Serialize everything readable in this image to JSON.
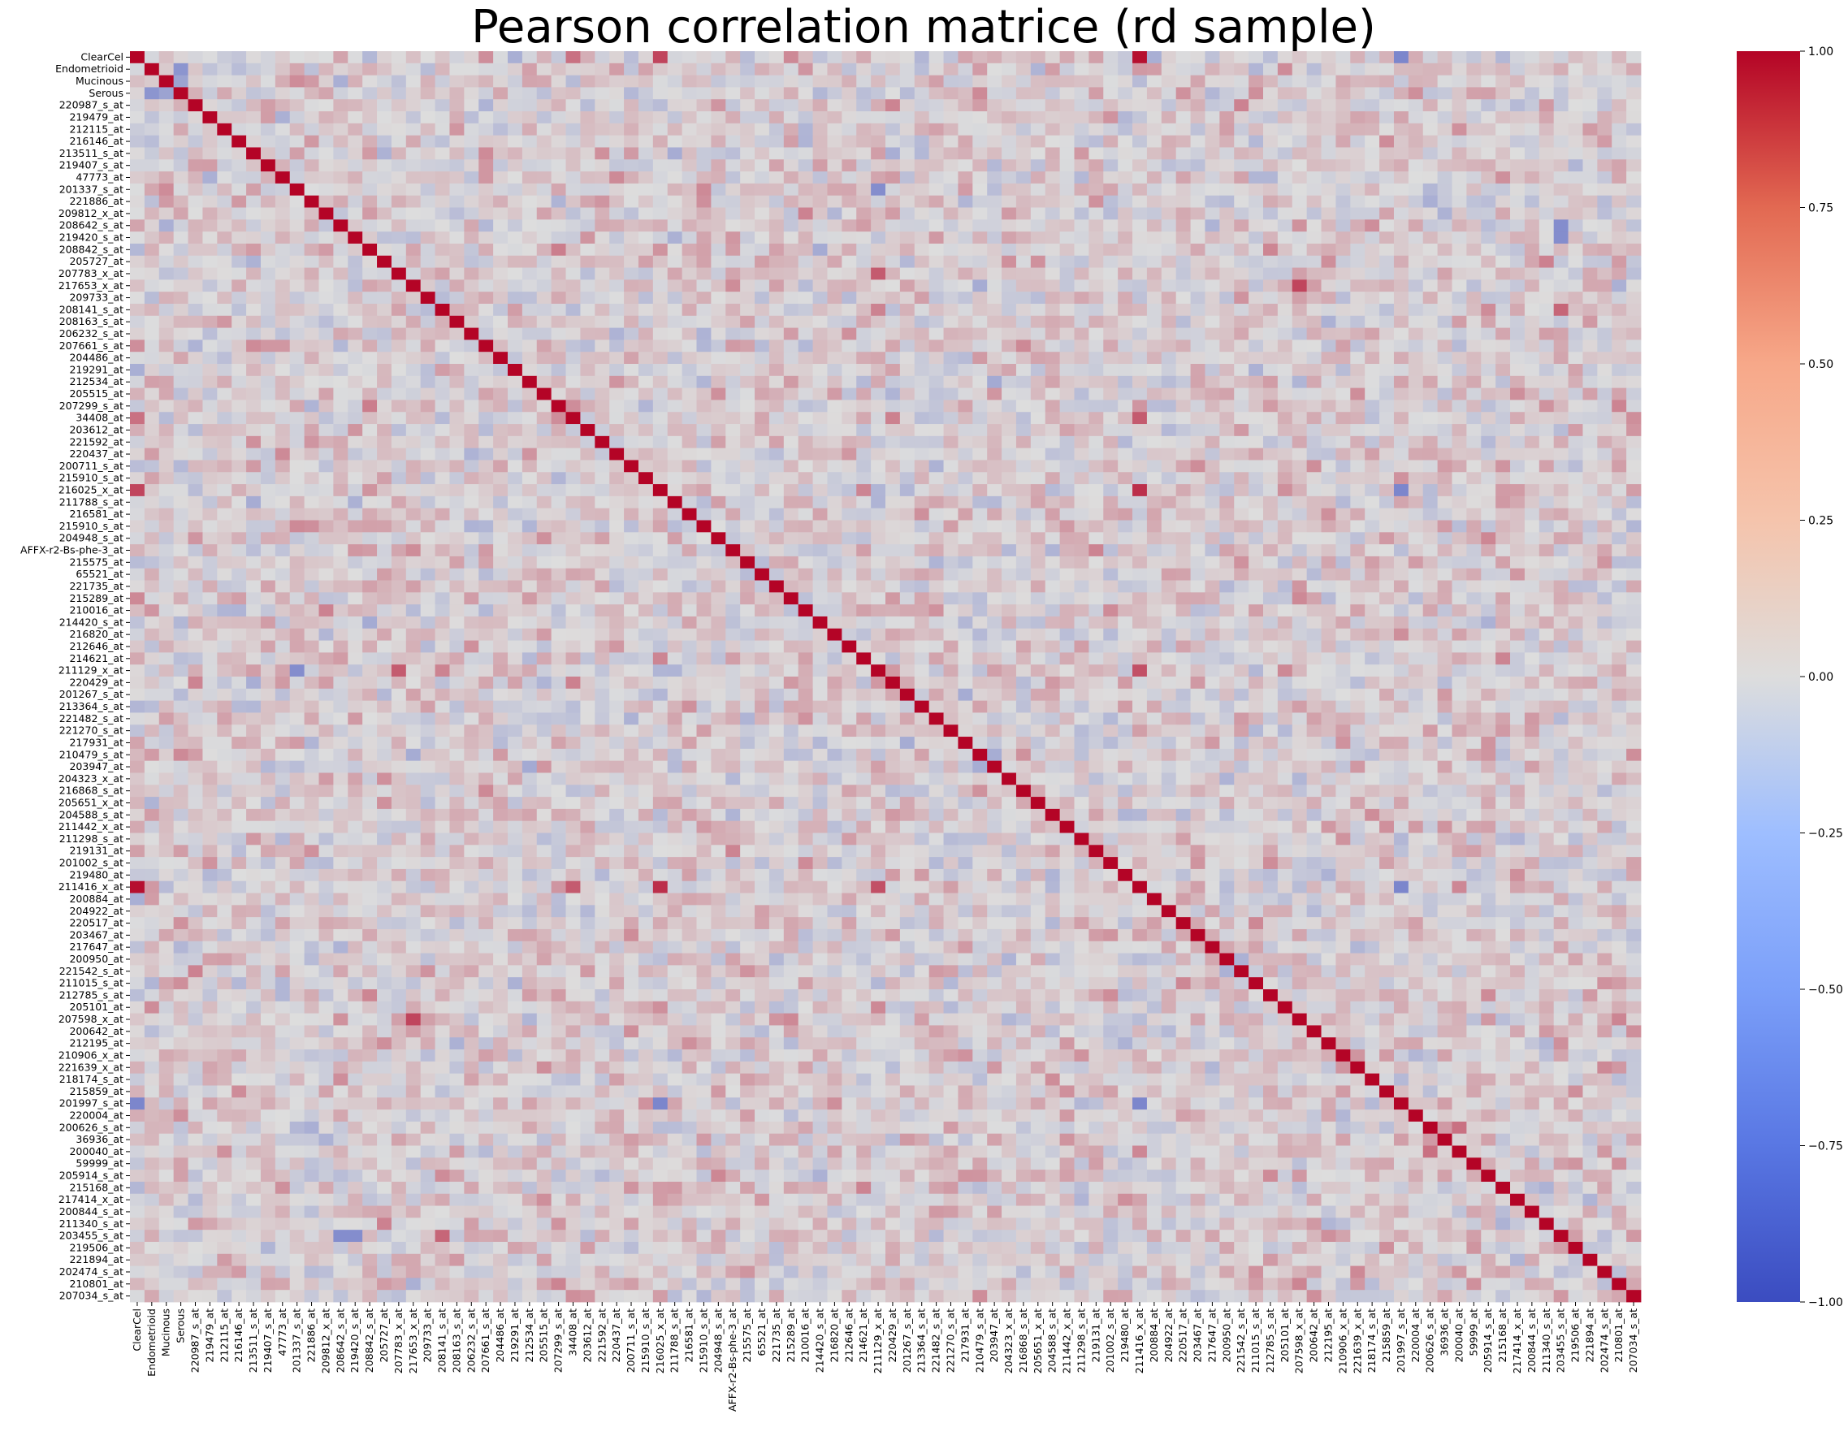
{
  "chart_data": {
    "type": "heatmap",
    "title": "Pearson correlation matrice (rd sample)",
    "xlabel": "",
    "ylabel": "",
    "colormap": "coolwarm",
    "color_low": "#3b4cc0",
    "color_mid": "#dddddd",
    "color_high": "#b40426",
    "vmin": -1.0,
    "vmax": 1.0,
    "colorbar_ticks": [
      "1.00",
      "0.75",
      "0.50",
      "0.25",
      "0.00",
      "−0.25",
      "−0.50",
      "−0.75",
      "−1.00"
    ],
    "colorbar_tick_values": [
      1.0,
      0.75,
      0.5,
      0.25,
      0.0,
      -0.25,
      -0.5,
      -0.75,
      -1.0
    ],
    "legend": "colorbar right",
    "grid": false,
    "row_labels": [
      "ClearCel",
      "Endometrioid",
      "Mucinous",
      "Serous",
      "220987_s_at",
      "219479_at",
      "212115_at",
      "216146_at",
      "213511_s_at",
      "219407_s_at",
      "47773_at",
      "201337_s_at",
      "221886_at",
      "209812_x_at",
      "208642_s_at",
      "219420_s_at",
      "208842_s_at",
      "205727_at",
      "207783_x_at",
      "217653_x_at",
      "209733_at",
      "208141_s_at",
      "208163_s_at",
      "206232_s_at",
      "207661_s_at",
      "204486_at",
      "219291_at",
      "212534_at",
      "205515_at",
      "207299_s_at",
      "34408_at",
      "203612_at",
      "221592_at",
      "220437_at",
      "200711_s_at",
      "215910_s_at",
      "216025_x_at",
      "211788_s_at",
      "216581_at",
      "215910_s_at",
      "204948_s_at",
      "AFFX-r2-Bs-phe-3_at",
      "215575_at",
      "65521_at",
      "221735_at",
      "215289_at",
      "210016_at",
      "214420_s_at",
      "216820_at",
      "212646_at",
      "214621_at",
      "211129_x_at",
      "220429_at",
      "201267_s_at",
      "213364_s_at",
      "221482_s_at",
      "221270_s_at",
      "217931_at",
      "210479_s_at",
      "203947_at",
      "204323_x_at",
      "216868_s_at",
      "205651_x_at",
      "204588_s_at",
      "211442_x_at",
      "211298_s_at",
      "219131_at",
      "201002_s_at",
      "219480_at",
      "211416_x_at",
      "200884_at",
      "204922_at",
      "220517_at",
      "203467_at",
      "217647_at",
      "200950_at",
      "221542_s_at",
      "211015_s_at",
      "212785_s_at",
      "205101_at",
      "207598_x_at",
      "200642_at",
      "212195_at",
      "210906_x_at",
      "221639_x_at",
      "218174_s_at",
      "215859_at",
      "201997_s_at",
      "220004_at",
      "200626_s_at",
      "36936_at",
      "200040_at",
      "59999_at",
      "205914_s_at",
      "215168_at",
      "217414_x_at",
      "200844_s_at",
      "211340_s_at",
      "203455_s_at",
      "219506_at",
      "221894_at",
      "202474_s_at",
      "210801_at",
      "207034_s_at"
    ],
    "col_labels": [
      "ClearCel",
      "Endometrioid",
      "Mucinous",
      "Serous",
      "220987_s_at",
      "219479_at",
      "212115_at",
      "216146_at",
      "213511_s_at",
      "219407_s_at",
      "47773_at",
      "201337_s_at",
      "221886_at",
      "209812_x_at",
      "208642_s_at",
      "219420_s_at",
      "208842_s_at",
      "205727_at",
      "207783_x_at",
      "217653_x_at",
      "209733_at",
      "208141_s_at",
      "208163_s_at",
      "206232_s_at",
      "207661_s_at",
      "204486_at",
      "219291_at",
      "212534_at",
      "205515_at",
      "207299_s_at",
      "34408_at",
      "203612_at",
      "221592_at",
      "220437_at",
      "200711_s_at",
      "215910_s_at",
      "216025_x_at",
      "211788_s_at",
      "216581_at",
      "215910_s_at",
      "204948_s_at",
      "AFFX-r2-Bs-phe-3_at",
      "215575_at",
      "65521_at",
      "221735_at",
      "215289_at",
      "210016_at",
      "214420_s_at",
      "216820_at",
      "212646_at",
      "214621_at",
      "211129_x_at",
      "220429_at",
      "201267_s_at",
      "213364_s_at",
      "221482_s_at",
      "221270_s_at",
      "217931_at",
      "210479_s_at",
      "203947_at",
      "204323_x_at",
      "216868_s_at",
      "205651_x_at",
      "204588_s_at",
      "211442_x_at",
      "211298_s_at",
      "219131_at",
      "201002_s_at",
      "219480_at",
      "211416_x_at",
      "200884_at",
      "204922_at",
      "220517_at",
      "203467_at",
      "217647_at",
      "200950_at",
      "221542_s_at",
      "211015_s_at",
      "212785_s_at",
      "205101_at",
      "207598_x_at",
      "200642_at",
      "212195_at",
      "210906_x_at",
      "221639_x_at",
      "218174_s_at",
      "215859_at",
      "201997_s_at",
      "220004_at",
      "200626_s_at",
      "36936_at",
      "200040_at",
      "59999_at",
      "205914_s_at",
      "215168_at",
      "217414_x_at",
      "200844_s_at",
      "211340_s_at",
      "203455_s_at",
      "219506_at",
      "221894_at",
      "202474_s_at",
      "210801_at",
      "207034_s_at"
    ],
    "x_tick_labels": [
      "ClearCel",
      "Endometrioid",
      "Mucinous",
      "Serous",
      "220987_s_at",
      "219479_at",
      "212115_at",
      "216146_at",
      "213511_s_at",
      "219407_s_at",
      "47773_at",
      "201337_s_at",
      "221886_at",
      "209812_x_at",
      "208642_s_at",
      "219420_s_at",
      "208842_s_at",
      "205727_at",
      "207783_x_at",
      "217653_x_at",
      "209733_at",
      "208141_s_at",
      "208163_s_at",
      "206232_s_at",
      "207661_s_at",
      "204486_at",
      "219291_at",
      "212534_at",
      "205515_at",
      "207299_s_at",
      "34408_at",
      "203612_at",
      "221592_at",
      "220437_at",
      "200711_s_at",
      "215910_s_at",
      "216025_x_at",
      "211788_s_at",
      "216581_at",
      "215910_s_at",
      "204948_s_at",
      "AFFX-r2-Bs-phe-3_at",
      "215575_at",
      "65521_at",
      "221735_at",
      "215289_at",
      "210016_at",
      "214420_s_at",
      "216820_at",
      "212646_at",
      "214621_at",
      "211129_x_at",
      "220429_at",
      "201267_s_at",
      "213364_s_at",
      "221482_s_at",
      "221270_s_at",
      "217931_at",
      "210479_s_at",
      "203947_at",
      "204323_x_at",
      "216868_s_at",
      "205651_x_at",
      "204588_s_at",
      "211442_x_at",
      "211298_s_at",
      "219131_at",
      "201002_s_at",
      "219480_at",
      "211416_x_at",
      "200884_at",
      "204922_at",
      "220517_at",
      "203467_at",
      "217647_at",
      "200950_at",
      "221542_s_at",
      "211015_s_at",
      "212785_s_at",
      "205101_at",
      "207598_x_at",
      "200642_at",
      "212195_at",
      "210906_x_at",
      "221639_x_at",
      "218174_s_at",
      "215859_at",
      "201997_s_at",
      "220004_at",
      "200626_s_at",
      "36936_at",
      "200040_at",
      "59999_at",
      "205914_s_at",
      "215168_at",
      "217414_x_at",
      "200844_s_at",
      "211340_s_at",
      "203455_s_at",
      "219506_at",
      "221894_at",
      "202474_s_at",
      "210801_at",
      "207034_s_at"
    ],
    "diagonal_value": 1.0,
    "strong_correlations": [
      {
        "row": "ClearCel",
        "col": "216025_x_at",
        "value": 0.7
      },
      {
        "row": "ClearCel",
        "col": "211416_x_at",
        "value": 0.95
      },
      {
        "row": "ClearCel",
        "col": "201997_s_at",
        "value": -0.6
      },
      {
        "row": "ClearCel",
        "col": "34408_at",
        "value": 0.5
      },
      {
        "row": "Endometrioid",
        "col": "Serous",
        "value": -0.5
      },
      {
        "row": "Mucinous",
        "col": "Serous",
        "value": -0.4
      },
      {
        "row": "215910_s_at",
        "col": "215910_s_at",
        "value": 1.0
      },
      {
        "row": "216025_x_at",
        "col": "211416_x_at",
        "value": 0.8
      },
      {
        "row": "216025_x_at",
        "col": "201997_s_at",
        "value": -0.6
      },
      {
        "row": "211129_x_at",
        "col": "201337_s_at",
        "value": -0.55
      },
      {
        "row": "211129_x_at",
        "col": "207783_x_at",
        "value": 0.6
      },
      {
        "row": "211129_x_at",
        "col": "211416_x_at",
        "value": 0.65
      },
      {
        "row": "217653_x_at",
        "col": "207598_x_at",
        "value": 0.7
      },
      {
        "row": "203455_s_at",
        "col": "208642_s_at",
        "value": -0.55
      },
      {
        "row": "203455_s_at",
        "col": "208141_s_at",
        "value": 0.55
      },
      {
        "row": "200626_s_at",
        "col": "200040_at",
        "value": 0.5
      },
      {
        "row": "211416_x_at",
        "col": "201997_s_at",
        "value": -0.6
      },
      {
        "row": "34408_at",
        "col": "211416_x_at",
        "value": 0.6
      },
      {
        "row": "219420_s_at",
        "col": "203455_s_at",
        "value": -0.55
      }
    ]
  }
}
